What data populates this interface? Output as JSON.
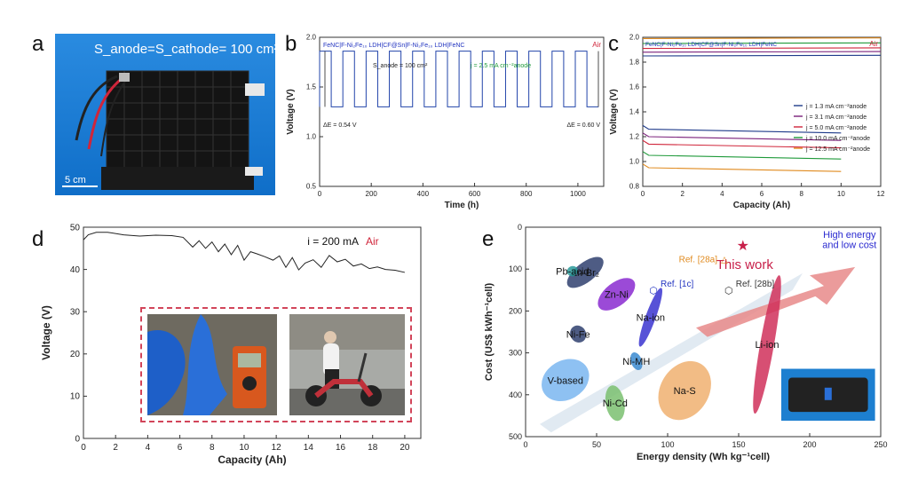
{
  "panel_letters": {
    "a": "a",
    "b": "b",
    "c": "c",
    "d": "d",
    "e": "e"
  },
  "panel_a": {
    "title": "S_anode=S_cathode= 100 cm²",
    "scale": "5 cm"
  },
  "colors": {
    "blue_line": "#2244aa",
    "air_red": "#d0253a",
    "green_text": "#1f9a3a",
    "photo_bg": "#1d7fd0"
  },
  "chart_data": [
    {
      "id": "b",
      "type": "line",
      "title": "FeNC|F-Ni₂Fe₁₀ LDH|CF@Sn|F-Ni₂Fe₁₀ LDH|FeNC",
      "air": "Air",
      "annotations": [
        "S_anode = 100 cm²",
        "j = 2.5 mA cm⁻²anode",
        "ΔE = 0.54 V",
        "ΔE = 0.60 V"
      ],
      "xlabel": "Time (h)",
      "ylabel": "Voltage (V)",
      "xlim": [
        0,
        1100
      ],
      "ylim": [
        0.5,
        2.0
      ],
      "xticks": [
        0,
        200,
        400,
        600,
        800,
        1000
      ],
      "yticks": [
        0.5,
        1.0,
        1.5,
        2.0
      ],
      "ytick_labels": [
        "0.5",
        "1.0",
        "1.5",
        "2.0"
      ],
      "charge_v": 1.86,
      "discharge_v": 1.3,
      "cycle_h": 90,
      "ncycles": 12
    },
    {
      "id": "c",
      "type": "line",
      "title": "FeNC|F-Ni₂Fe₁₀ LDH|CF@Sn|F-Ni₂Fe₁₀ LDH|FeNC",
      "air": "Air",
      "xlabel": "Capacity (Ah)",
      "ylabel": "Voltage (V)",
      "xlim": [
        0,
        12
      ],
      "ylim": [
        0.8,
        2.0
      ],
      "xticks": [
        0,
        2,
        4,
        6,
        8,
        10,
        12
      ],
      "yticks": [
        0.8,
        1.0,
        1.2,
        1.4,
        1.6,
        1.8,
        2.0
      ],
      "ytick_labels": [
        "0.8",
        "1.0",
        "1.2",
        "1.4",
        "1.6",
        "1.8",
        "2.0"
      ],
      "series": [
        {
          "name": "j = 1.3 mA cm⁻²anode",
          "color": "#1e3a8a",
          "charge": 1.85,
          "discharge": 1.26
        },
        {
          "name": "j = 3.1 mA cm⁻²anode",
          "color": "#7a1f7a",
          "charge": 1.88,
          "discharge": 1.2
        },
        {
          "name": "j = 5.0 mA cm⁻²anode",
          "color": "#d0253a",
          "charge": 1.91,
          "discharge": 1.14
        },
        {
          "name": "j = 10.0 mA cm⁻²anode",
          "color": "#1f9a3a",
          "charge": 1.95,
          "discharge": 1.05
        },
        {
          "name": "j = 12.5 mA cm⁻²anode",
          "color": "#e08a1e",
          "charge": 1.99,
          "discharge": 0.95
        }
      ]
    },
    {
      "id": "d",
      "type": "line",
      "annotation": "i = 200 mA",
      "air": "Air",
      "xlabel": "Capacity (Ah)",
      "ylabel": "Voltage (V)",
      "xlim": [
        0,
        21
      ],
      "ylim": [
        0,
        50
      ],
      "xticks": [
        0,
        2,
        4,
        6,
        8,
        10,
        12,
        14,
        16,
        18,
        20
      ],
      "yticks": [
        0,
        10,
        20,
        30,
        40,
        50
      ],
      "series": [
        {
          "name": "",
          "color": "#222222",
          "x": [
            0,
            0.3,
            0.8,
            1.5,
            2.5,
            3.5,
            4.5,
            5.5,
            6.2,
            6.8,
            7.2,
            7.6,
            8.0,
            8.4,
            8.8,
            9.2,
            9.6,
            10.0,
            10.4,
            10.8,
            11.3,
            11.8,
            12.2,
            12.6,
            13.0,
            13.4,
            13.8,
            14.3,
            14.8,
            15.3,
            15.8,
            16.3,
            16.8,
            17.3,
            17.8,
            18.3,
            18.8,
            19.4,
            20.0
          ],
          "y": [
            47,
            48.2,
            48.8,
            48.8,
            48.2,
            47.9,
            48.1,
            48.0,
            47.6,
            45.3,
            46.8,
            45.0,
            46.5,
            44.2,
            46.0,
            43.5,
            45.7,
            42.2,
            44.2,
            43.7,
            43.0,
            42.2,
            43.2,
            40.5,
            42.8,
            39.9,
            41.5,
            42.3,
            40.5,
            43.3,
            41.8,
            42.4,
            40.8,
            41.3,
            40.2,
            40.6,
            40.0,
            39.8,
            39.3
          ]
        }
      ]
    },
    {
      "id": "e",
      "type": "scatter",
      "xlabel": "Energy density (Wh kg⁻¹cell)",
      "ylabel": "Cost (US$ kWh⁻¹cell)",
      "xlim": [
        0,
        250
      ],
      "ylim": [
        500,
        0
      ],
      "xticks": [
        0,
        50,
        100,
        150,
        200,
        250
      ],
      "yticks": [
        0,
        100,
        200,
        300,
        400,
        500
      ],
      "arrow_label": "High energy and low cost",
      "technologies": [
        {
          "name": "Zn-Br₂",
          "cx": 42,
          "cy": 108,
          "rx": 28,
          "ry": 42,
          "rot": 38,
          "color": "#2f3f6e"
        },
        {
          "name": "Pb-acid",
          "cx": 33,
          "cy": 105,
          "rx": 7,
          "ry": 22,
          "rot": 25,
          "color": "#2a9a9a"
        },
        {
          "name": "Zn-Ni",
          "cx": 64,
          "cy": 160,
          "rx": 28,
          "ry": 50,
          "rot": 38,
          "color": "#8a2ad0"
        },
        {
          "name": "Na-ion",
          "cx": 88,
          "cy": 215,
          "rx": 40,
          "ry": 22,
          "rot": 70,
          "color": "#3a34d0"
        },
        {
          "name": "Li-ion",
          "cx": 170,
          "cy": 280,
          "rx": 90,
          "ry": 30,
          "rot": 80,
          "color": "#d0305a"
        },
        {
          "name": "Ni-Fe",
          "cx": 37,
          "cy": 255,
          "rx": 10,
          "ry": 38,
          "rot": 30,
          "color": "#2f3f6e"
        },
        {
          "name": "Ni-MH",
          "cx": 78,
          "cy": 320,
          "rx": 7,
          "ry": 40,
          "rot": 20,
          "color": "#3a8ad0"
        },
        {
          "name": "V-based",
          "cx": 28,
          "cy": 365,
          "rx": 32,
          "ry": 85,
          "rot": 30,
          "color": "#7ab6f0"
        },
        {
          "name": "Ni-Cd",
          "cx": 63,
          "cy": 420,
          "rx": 12,
          "ry": 78,
          "rot": 10,
          "color": "#7ac070"
        },
        {
          "name": "Na-S",
          "cx": 112,
          "cy": 390,
          "rx": 40,
          "ry": 105,
          "rot": 58,
          "color": "#f0b070"
        }
      ],
      "points": [
        {
          "name": "This work",
          "x": 153,
          "y": 45,
          "marker": "star",
          "color": "#c8204a"
        },
        {
          "name": "Ref. [28a]",
          "x": 140,
          "y": 75,
          "marker": "triangle",
          "color": "#e08a1e"
        },
        {
          "name": "Ref. [1c]",
          "x": 90,
          "y": 150,
          "marker": "hexagon",
          "color": "#2234c0"
        },
        {
          "name": "Ref. [28b]",
          "x": 143,
          "y": 150,
          "marker": "hexagon",
          "color": "#333333"
        }
      ]
    }
  ]
}
